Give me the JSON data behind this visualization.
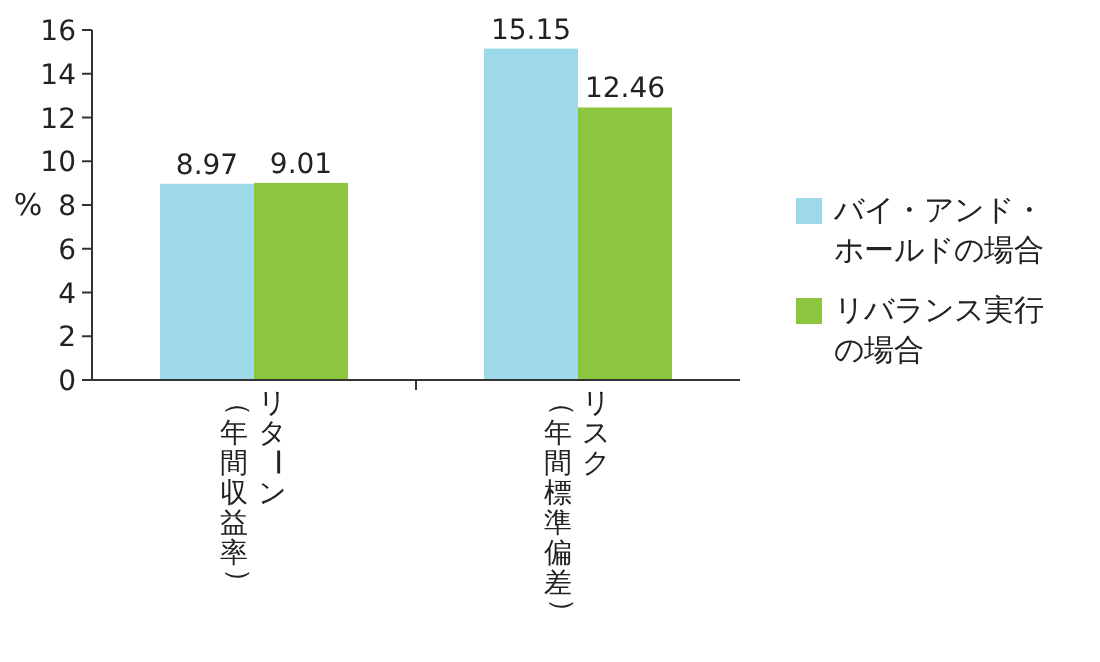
{
  "chart_data": {
    "type": "bar",
    "ylabel": "%",
    "categories": [
      "リターン（年間収益率）",
      "リスク（年間標準偏差）"
    ],
    "series": [
      {
        "name": "バイ・アンド・ホールドの場合",
        "color": "#9dd9e8",
        "values": [
          8.97,
          15.15
        ]
      },
      {
        "name": "リバランス実行の場合",
        "color": "#8cc63f",
        "values": [
          9.01,
          12.46
        ]
      }
    ],
    "ylim": [
      0,
      16
    ],
    "yticks": [
      0,
      2,
      4,
      6,
      8,
      10,
      12,
      14,
      16
    ],
    "data_labels": true,
    "legend": "right",
    "grid": false
  }
}
